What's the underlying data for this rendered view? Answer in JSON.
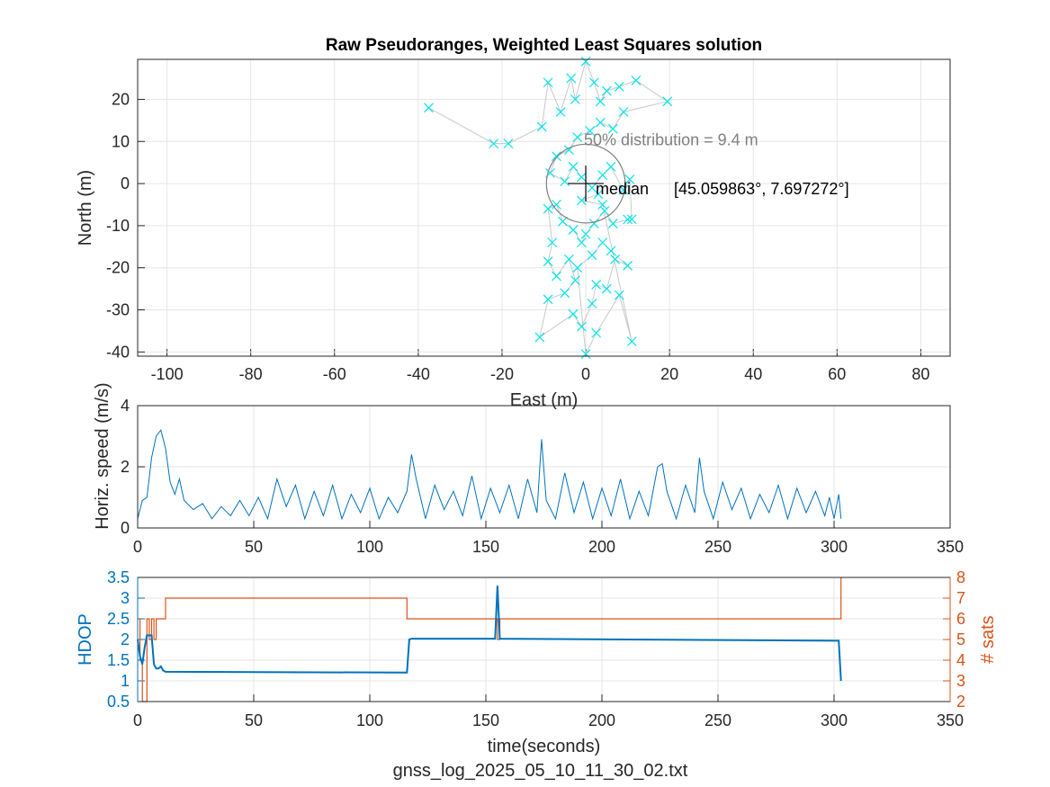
{
  "chart_data": [
    {
      "type": "scatter",
      "title": "Raw Pseudoranges, Weighted Least Squares solution",
      "xlabel": "East (m)",
      "ylabel": "North (m)",
      "xlim": [
        -107,
        87
      ],
      "ylim": [
        -41,
        29.5
      ],
      "xticks": [
        -100,
        -80,
        -60,
        -40,
        -20,
        0,
        20,
        40,
        60,
        80
      ],
      "yticks": [
        -40,
        -30,
        -20,
        -10,
        0,
        10,
        20
      ],
      "grid": true,
      "annotations": {
        "distribution": "50% distribution = 9.4 m",
        "median_label": "median",
        "median_coords": "[45.059863°, 7.697272°]"
      },
      "circle_radius": 9.4,
      "colors": {
        "points": "#00e5ee",
        "track": "#c8c8c8",
        "circle": "#808080",
        "median": "#000000",
        "annotation": "#808080"
      },
      "points": [
        [
          -37.5,
          18
        ],
        [
          -22,
          9.5
        ],
        [
          -18.5,
          9.5
        ],
        [
          -10.5,
          13.5
        ],
        [
          -9,
          24
        ],
        [
          -6,
          17
        ],
        [
          -3.5,
          25
        ],
        [
          -2.5,
          20
        ],
        [
          0,
          29
        ],
        [
          2,
          24
        ],
        [
          3.5,
          19.5
        ],
        [
          5,
          22
        ],
        [
          8,
          23
        ],
        [
          12,
          24.5
        ],
        [
          19.5,
          19.5
        ],
        [
          9,
          17
        ],
        [
          6.5,
          13
        ],
        [
          3.5,
          14.5
        ],
        [
          1,
          12.5
        ],
        [
          -2,
          11
        ],
        [
          -4,
          8
        ],
        [
          -7,
          6.5
        ],
        [
          -8.5,
          2.5
        ],
        [
          -5,
          0.5
        ],
        [
          -3,
          4
        ],
        [
          -1,
          1.5
        ],
        [
          1.5,
          -1
        ],
        [
          4,
          2
        ],
        [
          6,
          4
        ],
        [
          9,
          -1.5
        ],
        [
          10.5,
          1
        ],
        [
          11,
          -8.5
        ],
        [
          10,
          -8.5
        ],
        [
          6.5,
          -9.5
        ],
        [
          4.5,
          -6.5
        ],
        [
          2,
          -9.5
        ],
        [
          0,
          -12
        ],
        [
          -1,
          -14
        ],
        [
          -3,
          -11
        ],
        [
          -5.5,
          -9
        ],
        [
          -7,
          -5
        ],
        [
          -9,
          -6
        ],
        [
          -8,
          -14
        ],
        [
          -9,
          -18.5
        ],
        [
          -7,
          -22
        ],
        [
          -4,
          -18
        ],
        [
          -2.5,
          -23
        ],
        [
          -5,
          -26
        ],
        [
          -9,
          -27.5
        ],
        [
          -11,
          -36.5
        ],
        [
          -3,
          -31
        ],
        [
          -1,
          -34
        ],
        [
          1.5,
          -28.5
        ],
        [
          2.5,
          -24
        ],
        [
          5,
          -25
        ],
        [
          7,
          -18
        ],
        [
          10,
          -19.5
        ],
        [
          6,
          -16
        ],
        [
          4,
          -14
        ],
        [
          1.5,
          -17
        ],
        [
          -2,
          -20
        ],
        [
          0,
          -40.5
        ],
        [
          2.5,
          -35.5
        ],
        [
          8,
          -26.5
        ],
        [
          11,
          -37.5
        ],
        [
          4,
          -5
        ],
        [
          -1,
          -4
        ],
        [
          3,
          -2.5
        ]
      ]
    },
    {
      "type": "line",
      "ylabel": "Horiz. speed (m/s)",
      "xlim": [
        0,
        350
      ],
      "ylim": [
        0,
        4
      ],
      "xticks": [
        0,
        50,
        100,
        150,
        200,
        250,
        300,
        350
      ],
      "yticks": [
        0,
        2,
        4
      ],
      "grid": true,
      "colors": {
        "line": "#0072bd"
      },
      "x": [
        0,
        2,
        4,
        6,
        8,
        10,
        12,
        14,
        16,
        18,
        20,
        24,
        28,
        32,
        36,
        40,
        44,
        48,
        52,
        56,
        60,
        64,
        68,
        72,
        76,
        80,
        84,
        88,
        92,
        96,
        100,
        104,
        108,
        112,
        116,
        118,
        120,
        124,
        128,
        132,
        136,
        140,
        144,
        148,
        152,
        156,
        160,
        164,
        168,
        172,
        174,
        176,
        180,
        184,
        188,
        192,
        196,
        200,
        204,
        208,
        212,
        216,
        220,
        224,
        226,
        228,
        232,
        236,
        240,
        242,
        244,
        248,
        252,
        256,
        260,
        264,
        268,
        272,
        276,
        280,
        284,
        288,
        292,
        296,
        298,
        300,
        302,
        303
      ],
      "y": [
        0.3,
        0.9,
        1.0,
        2.3,
        3.0,
        3.2,
        2.6,
        1.5,
        1.1,
        1.6,
        0.9,
        0.6,
        0.8,
        0.3,
        0.7,
        0.4,
        0.9,
        0.4,
        1.0,
        0.3,
        1.6,
        0.7,
        1.4,
        0.3,
        1.2,
        0.4,
        1.4,
        0.3,
        1.1,
        0.5,
        1.3,
        0.3,
        1.0,
        0.5,
        1.2,
        2.4,
        1.6,
        0.3,
        1.4,
        0.6,
        1.2,
        0.4,
        1.7,
        0.3,
        1.3,
        0.5,
        1.4,
        0.3,
        1.6,
        0.5,
        2.9,
        0.9,
        0.3,
        1.8,
        0.5,
        1.5,
        0.3,
        1.3,
        0.4,
        1.6,
        0.3,
        1.2,
        0.4,
        2.0,
        2.1,
        1.2,
        0.3,
        1.4,
        0.5,
        2.3,
        1.2,
        0.3,
        1.5,
        0.6,
        1.3,
        0.3,
        1.1,
        0.5,
        1.4,
        0.3,
        1.3,
        0.5,
        1.2,
        0.4,
        1.0,
        0.3,
        1.1,
        0.3
      ]
    },
    {
      "type": "line",
      "xlabel": "time(seconds)",
      "ylabel_left": "HDOP",
      "ylabel_right": "# sats",
      "xlim": [
        0,
        350
      ],
      "ylim_left": [
        0.5,
        3.5
      ],
      "ylim_right": [
        2,
        8
      ],
      "xticks": [
        0,
        50,
        100,
        150,
        200,
        250,
        300,
        350
      ],
      "yticks_left": [
        "0.5",
        "1",
        "1.5",
        "2",
        "2.5",
        "3",
        "3.5"
      ],
      "yticks_right": [
        "2",
        "3",
        "4",
        "5",
        "6",
        "7",
        "8"
      ],
      "grid": true,
      "colors": {
        "hdop": "#0072bd",
        "sats": "#d95319"
      },
      "series": [
        {
          "name": "HDOP",
          "axis": "left",
          "x": [
            0,
            1,
            2,
            3,
            4,
            5,
            6,
            7,
            8,
            9,
            10,
            11,
            12,
            116,
            117,
            118,
            154,
            155,
            156,
            302,
            303
          ],
          "y": [
            2.0,
            1.6,
            1.4,
            1.8,
            2.1,
            2.1,
            2.1,
            1.4,
            1.3,
            1.3,
            1.35,
            1.25,
            1.22,
            1.2,
            2.0,
            2.02,
            2.02,
            3.3,
            2.02,
            1.97,
            1.0
          ]
        },
        {
          "name": "# sats",
          "axis": "right",
          "step": true,
          "x": [
            0,
            1,
            2,
            3,
            4,
            5,
            6,
            7,
            8,
            9,
            12,
            116,
            154,
            155,
            156,
            302,
            303
          ],
          "y": [
            6,
            4,
            2,
            2,
            6,
            5,
            6,
            5,
            6,
            6,
            7,
            6,
            6,
            5,
            6,
            6,
            8
          ]
        }
      ]
    }
  ],
  "figure_caption": "gnss_log_2025_05_10_11_30_02.txt"
}
